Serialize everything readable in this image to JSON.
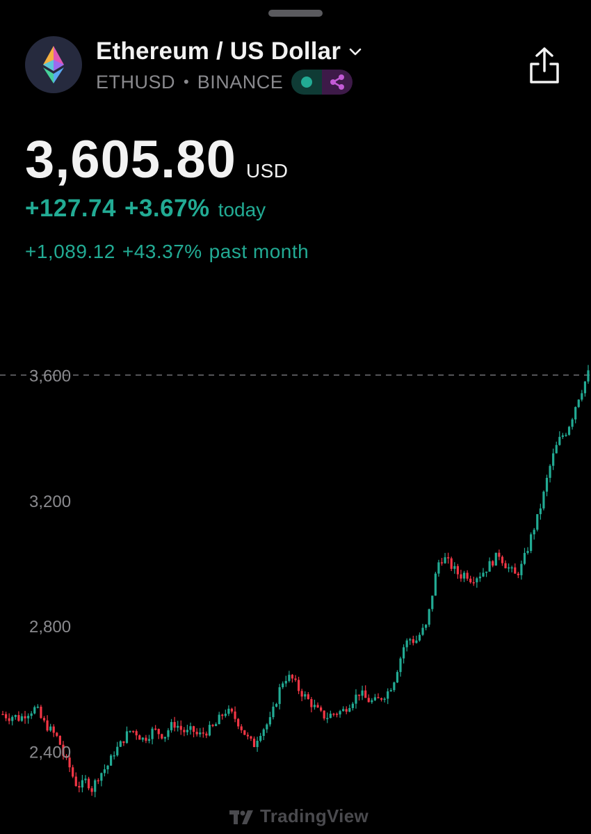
{
  "header": {
    "title": "Ethereum / US Dollar",
    "symbol": "ETHUSD",
    "exchange": "BINANCE",
    "logo_icon": "ethereum-icon",
    "market_status_color": "#22ab94",
    "network_icon": "share-network-icon"
  },
  "quote": {
    "price": "3,605.80",
    "currency": "USD",
    "today_change": "+127.74",
    "today_percent": "+3.67%",
    "today_label": "today",
    "month_change": "+1,089.12",
    "month_percent": "+43.37%",
    "month_label": "past month"
  },
  "colors": {
    "up": "#22ab94",
    "down": "#f23645",
    "background": "#000000"
  },
  "chart_data": {
    "type": "candlestick",
    "ylim": [
      2180,
      3820
    ],
    "yticks": [
      "3,600",
      "3,200",
      "2,800",
      "2,400"
    ],
    "ytick_values": [
      3600,
      3200,
      2800,
      2400
    ],
    "current_price_line": 3600,
    "close_path": [
      2520,
      2510,
      2515,
      2505,
      2520,
      2530,
      2540,
      2500,
      2480,
      2460,
      2440,
      2380,
      2350,
      2300,
      2290,
      2310,
      2280,
      2320,
      2340,
      2360,
      2400,
      2420,
      2450,
      2470,
      2460,
      2440,
      2450,
      2470,
      2460,
      2450,
      2480,
      2490,
      2470,
      2460,
      2470,
      2450,
      2460,
      2470,
      2480,
      2510,
      2530,
      2520,
      2500,
      2470,
      2440,
      2420,
      2460,
      2480,
      2500,
      2560,
      2620,
      2640,
      2630,
      2600,
      2580,
      2560,
      2540,
      2520,
      2510,
      2520,
      2525,
      2530,
      2550,
      2570,
      2590,
      2570,
      2560,
      2560,
      2575,
      2590,
      2620,
      2680,
      2740,
      2760,
      2750,
      2780,
      2800,
      2900,
      3000,
      3020,
      3000,
      2980,
      2960,
      2970,
      2950,
      2960,
      2970,
      2990,
      3010,
      3030,
      3000,
      2980,
      2960,
      2990,
      3040,
      3100,
      3150,
      3220,
      3300,
      3360,
      3400,
      3420,
      3460,
      3520,
      3560,
      3605
    ]
  },
  "footer": {
    "brand": "TradingView",
    "brand_icon": "tradingview-logo-icon"
  }
}
